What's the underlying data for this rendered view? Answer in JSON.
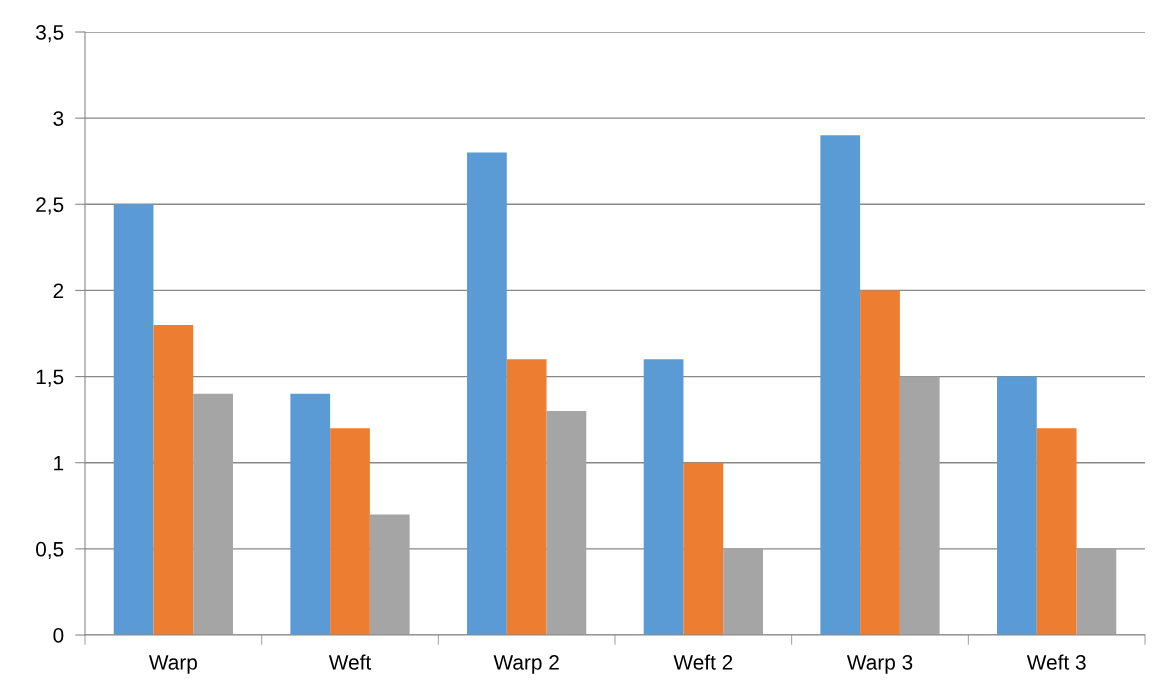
{
  "chart_data": {
    "type": "bar",
    "categories": [
      "Warp",
      "Weft",
      "Warp 2",
      "Weft 2",
      "Warp 3",
      "Weft 3"
    ],
    "series": [
      {
        "color": "#5b9bd5",
        "values": [
          2.5,
          1.4,
          2.8,
          1.6,
          2.9,
          1.5
        ]
      },
      {
        "color": "#ed7d31",
        "values": [
          1.8,
          1.2,
          1.6,
          1.0,
          2.0,
          1.2
        ]
      },
      {
        "color": "#a5a5a5",
        "values": [
          1.4,
          0.7,
          1.3,
          0.5,
          1.5,
          0.5
        ]
      }
    ],
    "ylim": [
      0,
      3.5
    ],
    "yticks": [
      0,
      {
        "value": 0.5,
        "label": "0,5"
      },
      1,
      {
        "value": 1.5,
        "label": "1,5"
      },
      2,
      {
        "value": 2.5,
        "label": "2,5"
      },
      3,
      {
        "value": 3.5,
        "label": "3,5"
      }
    ],
    "grid": "y",
    "legend": false
  }
}
